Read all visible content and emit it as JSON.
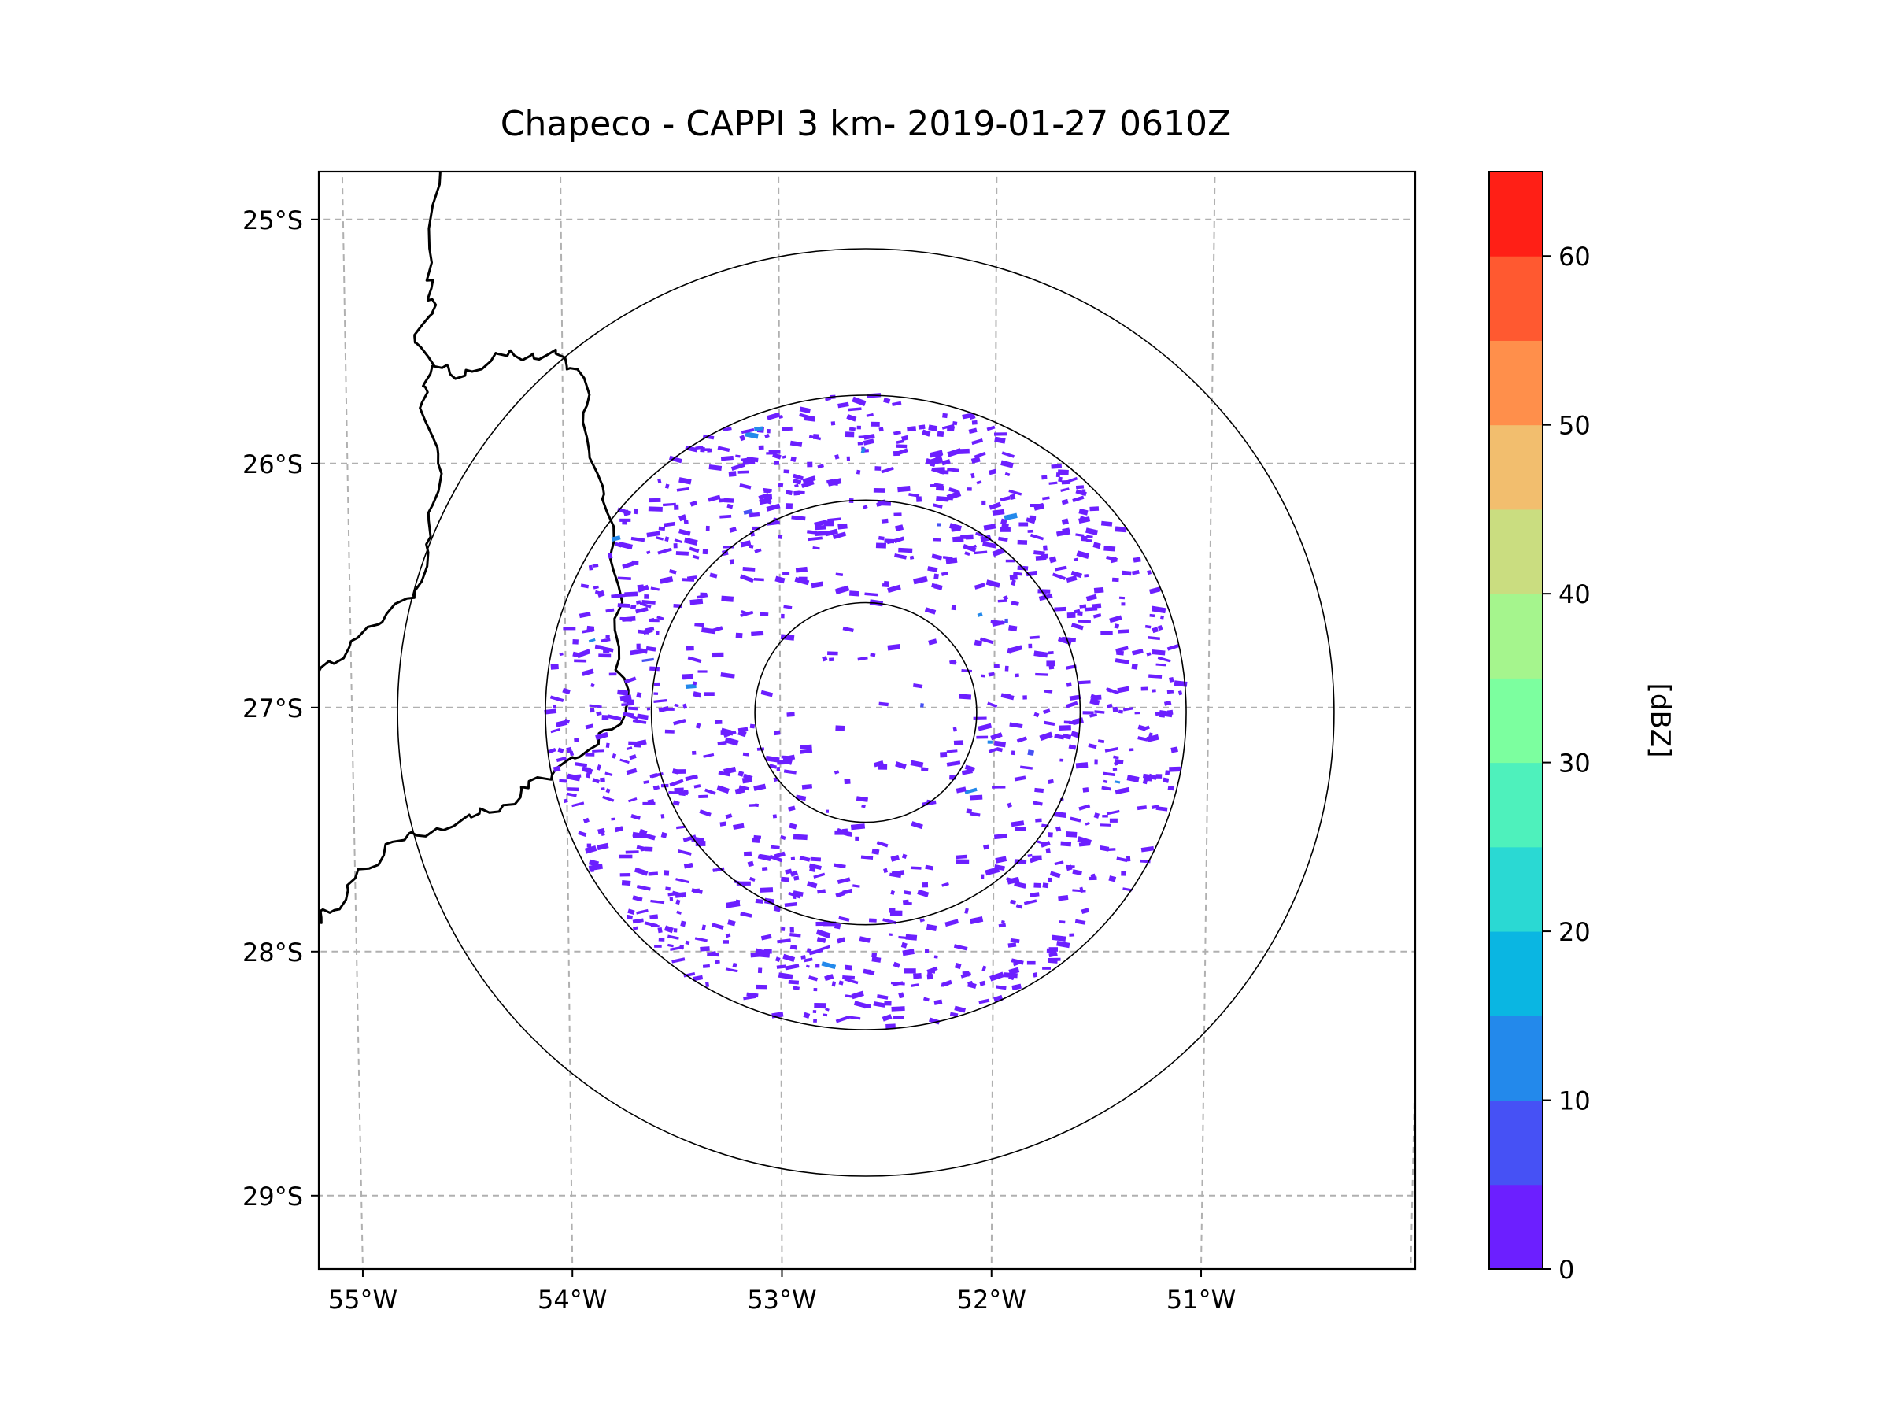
{
  "chart_data": {
    "type": "radar-map",
    "title": "Chapeco - CAPPI 3 km- 2019-01-27 0610Z",
    "radar_site": "Chapeco",
    "product": "CAPPI 3 km",
    "datetime": "2019-01-27 0610Z",
    "radar_center": {
      "lon": -52.6,
      "lat": -27.02
    },
    "range_rings_deg": [
      0.45,
      0.87,
      1.3,
      1.9
    ],
    "xlim": [
      -55.2,
      -50.1
    ],
    "ylim": [
      -29.3,
      -24.8
    ],
    "lon_ticks": [
      {
        "value": -55,
        "label": "55°W"
      },
      {
        "value": -54,
        "label": "54°W"
      },
      {
        "value": -53,
        "label": "53°W"
      },
      {
        "value": -52,
        "label": "52°W"
      },
      {
        "value": -51,
        "label": "51°W"
      }
    ],
    "lat_ticks": [
      {
        "value": -25,
        "label": "25°S"
      },
      {
        "value": -26,
        "label": "26°S"
      },
      {
        "value": -27,
        "label": "27°S"
      },
      {
        "value": -28,
        "label": "28°S"
      },
      {
        "value": -29,
        "label": "29°S"
      }
    ],
    "gridlines": true,
    "colorbar": {
      "label": "[dBZ]",
      "min": 0,
      "max": 65,
      "step": 5,
      "colors": [
        "#6c1fff",
        "#4651f5",
        "#2389eb",
        "#0ab6e2",
        "#2ad9d3",
        "#4ef1bc",
        "#7cff9f",
        "#a5f58d",
        "#cadd80",
        "#f2be6e",
        "#ff8f4b",
        "#ff5930",
        "#ff1f16"
      ],
      "ticks": [
        {
          "value": 0,
          "label": "0"
        },
        {
          "value": 10,
          "label": "10"
        },
        {
          "value": 20,
          "label": "20"
        },
        {
          "value": 30,
          "label": "30"
        },
        {
          "value": 40,
          "label": "40"
        },
        {
          "value": 50,
          "label": "50"
        },
        {
          "value": 60,
          "label": "60"
        }
      ]
    },
    "echo_summary": {
      "dominant_dbz_range": [
        0,
        5
      ],
      "max_observed_dbz": 15
    },
    "borders": [
      [
        [
          -54.55,
          -24.8
        ],
        [
          -54.62,
          -25.25
        ],
        [
          -54.58,
          -25.35
        ],
        [
          -54.68,
          -25.48
        ],
        [
          -54.6,
          -25.6
        ],
        [
          -54.65,
          -25.75
        ],
        [
          -54.58,
          -26.0
        ],
        [
          -54.62,
          -26.3
        ],
        [
          -54.7,
          -26.55
        ],
        [
          -54.92,
          -26.67
        ],
        [
          -55.08,
          -26.82
        ],
        [
          -55.2,
          -26.87
        ]
      ],
      [
        [
          -54.6,
          -25.6
        ],
        [
          -54.45,
          -25.64
        ],
        [
          -54.3,
          -25.55
        ],
        [
          -54.15,
          -25.56
        ],
        [
          -54.03,
          -25.55
        ],
        [
          -53.9,
          -25.65
        ],
        [
          -53.88,
          -25.95
        ],
        [
          -53.8,
          -26.2
        ],
        [
          -53.75,
          -26.5
        ],
        [
          -53.75,
          -26.8
        ],
        [
          -53.72,
          -27.0
        ],
        [
          -53.85,
          -27.15
        ],
        [
          -54.05,
          -27.25
        ],
        [
          -54.18,
          -27.33
        ],
        [
          -54.3,
          -27.4
        ],
        [
          -54.45,
          -27.45
        ],
        [
          -54.62,
          -27.5
        ],
        [
          -54.82,
          -27.55
        ],
        [
          -55.0,
          -27.7
        ],
        [
          -55.1,
          -27.83
        ],
        [
          -55.2,
          -27.87
        ]
      ]
    ]
  }
}
